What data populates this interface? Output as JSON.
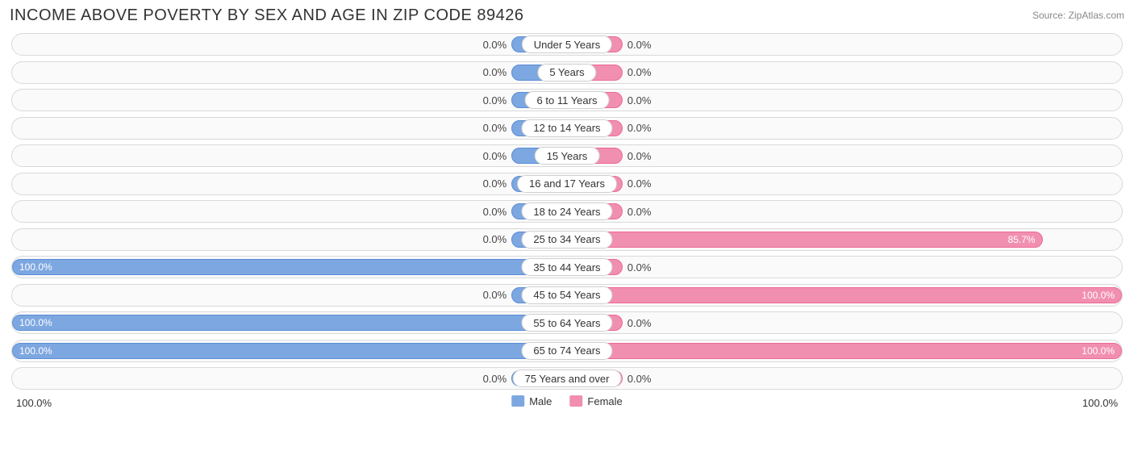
{
  "title": "INCOME ABOVE POVERTY BY SEX AND AGE IN ZIP CODE 89426",
  "source": "Source: ZipAtlas.com",
  "chart": {
    "type": "diverging-bar",
    "male_color": "#7da7e0",
    "male_border": "#5b8dd6",
    "female_color": "#f18fb0",
    "female_border": "#ec6a96",
    "track_bg": "#fafafa",
    "track_border": "#d9d9d9",
    "background": "#ffffff",
    "min_bar_pct": 10,
    "axis_min_label": "100.0%",
    "axis_max_label": "100.0%",
    "legend": [
      {
        "label": "Male",
        "color": "#7da7e0"
      },
      {
        "label": "Female",
        "color": "#f18fb0"
      }
    ],
    "rows": [
      {
        "category": "Under 5 Years",
        "male": 0.0,
        "female": 0.0
      },
      {
        "category": "5 Years",
        "male": 0.0,
        "female": 0.0
      },
      {
        "category": "6 to 11 Years",
        "male": 0.0,
        "female": 0.0
      },
      {
        "category": "12 to 14 Years",
        "male": 0.0,
        "female": 0.0
      },
      {
        "category": "15 Years",
        "male": 0.0,
        "female": 0.0
      },
      {
        "category": "16 and 17 Years",
        "male": 0.0,
        "female": 0.0
      },
      {
        "category": "18 to 24 Years",
        "male": 0.0,
        "female": 0.0
      },
      {
        "category": "25 to 34 Years",
        "male": 0.0,
        "female": 85.7
      },
      {
        "category": "35 to 44 Years",
        "male": 100.0,
        "female": 0.0
      },
      {
        "category": "45 to 54 Years",
        "male": 0.0,
        "female": 100.0
      },
      {
        "category": "55 to 64 Years",
        "male": 100.0,
        "female": 0.0
      },
      {
        "category": "65 to 74 Years",
        "male": 100.0,
        "female": 100.0
      },
      {
        "category": "75 Years and over",
        "male": 0.0,
        "female": 0.0
      }
    ]
  }
}
